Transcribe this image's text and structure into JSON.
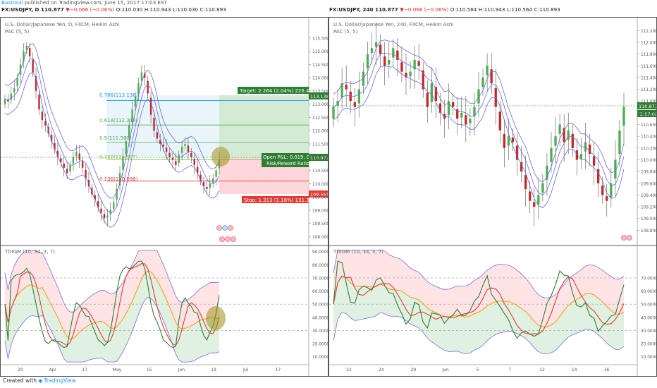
{
  "header": {
    "author": "Bastosai",
    "published": "published on TradingView.com, June 15, 2017 17:03 EST"
  },
  "footer": {
    "created_with": "Created with",
    "brand": "TradingView"
  },
  "colors": {
    "up": "#4caf50",
    "down": "#c62828",
    "pac": "#6a6ad8",
    "tdi_green": "#2e7d32",
    "tdi_red": "#e53935",
    "tdi_orange": "#ff9800",
    "tdi_band": "#7b68ee"
  },
  "charts": [
    {
      "id": "daily",
      "quote": {
        "symbol": "FX:USDJPY, D",
        "price": "110.877",
        "change": "−0.066 (−0.06%)",
        "o": "O:110.030",
        "h": "H:110.943",
        "l": "L:110.030",
        "c": "C:110.893"
      },
      "title": "U.S. Dollar/Japanese Yen, D, FXCM, Heikin Ashi",
      "pac_label": "PAC (5, 5)",
      "tdi_label": "TDIGM (10, 34, 3, 7)",
      "fib": [
        {
          "label": "0.786(113.136)",
          "value": 113.136
        },
        {
          "label": "0.618(112.214)",
          "value": 112.214
        },
        {
          "label": "0.5(111.560)",
          "value": 111.56
        },
        {
          "label": "0.382(110.907)",
          "value": 110.907
        },
        {
          "label": "0.236(110.098)",
          "value": 110.098
        }
      ],
      "position": {
        "target": "Target: 2.264 (2.04%) 226.4,",
        "open": "Open P&L: 0.019, Qt",
        "rr": "Risk/Reward Ratio:",
        "stop": "Stop: 1.313 (1.18%) 131.3,"
      },
      "price_tags": {
        "target": "113.138",
        "last": "110.877",
        "stop": "109.561"
      },
      "x_labels": [
        "20",
        "Apr",
        "17",
        "May",
        "15",
        "Jun",
        "19",
        "Jul",
        "17"
      ],
      "y_labels": [
        "115.500",
        "115.000",
        "114.500",
        "114.000",
        "113.500",
        "113.000",
        "112.500",
        "112.000",
        "111.500",
        "111.000",
        "110.500",
        "110.000",
        "109.500",
        "109.000",
        "108.500",
        "108.000"
      ],
      "tdi_y_labels": [
        "90.0000",
        "80.0000",
        "70.0000",
        "60.0000",
        "50.0000",
        "40.0000",
        "30.0000",
        "20.0000",
        "10.0000"
      ]
    },
    {
      "id": "h4",
      "quote": {
        "symbol": "FX:USDJPY, 240",
        "price": "110.877",
        "change": "−0.066 (−0.06%)",
        "o": "O:110.564",
        "h": "H:110.943",
        "l": "L:110.564",
        "c": "C:110.893"
      },
      "title": "U.S. Dollar/Japanese Yen, 240, FXCM, Heikin Ashi",
      "pac_label": "PAC (5, 5)",
      "tdi_label": "TDIGM (10, 34, 3, 7)",
      "price_tags": {
        "last": "110.877",
        "countdown": "2:57:00"
      },
      "x_labels": [
        "22",
        "24",
        "29",
        "Jun",
        "5",
        "7",
        "12",
        "14",
        "16"
      ],
      "y_labels": [
        "112.200",
        "112.000",
        "111.800",
        "111.600",
        "111.400",
        "111.200",
        "111.000",
        "110.800",
        "110.600",
        "110.400",
        "110.200",
        "110.000",
        "109.800",
        "109.600",
        "109.400",
        "109.200",
        "109.000",
        "108.800"
      ],
      "tdi_y_labels": [
        "70.0000",
        "60.0000",
        "50.0000",
        "40.0000",
        "30.0000",
        "20.0000",
        "10.0000"
      ]
    }
  ],
  "chart_data": [
    {
      "type": "candlestick",
      "title": "U.S. Dollar/Japanese Yen, D, FXCM, Heikin Ashi",
      "ylim": [
        107.8,
        116.0
      ],
      "closes": [
        113.2,
        113.1,
        113.4,
        113.6,
        114.0,
        114.5,
        115.0,
        115.2,
        114.8,
        114.2,
        113.5,
        112.8,
        112.4,
        112.2,
        111.9,
        111.6,
        111.3,
        111.0,
        110.8,
        110.6,
        110.4,
        110.7,
        111.0,
        111.2,
        110.9,
        110.6,
        110.2,
        109.9,
        109.6,
        109.4,
        109.1,
        108.9,
        108.7,
        108.8,
        109.0,
        109.3,
        109.8,
        110.4,
        111.0,
        111.6,
        112.2,
        112.8,
        113.3,
        113.8,
        114.2,
        114.0,
        113.4,
        112.6,
        112.0,
        111.7,
        111.5,
        111.4,
        111.2,
        111.0,
        110.9,
        110.7,
        111.1,
        111.4,
        111.5,
        111.2,
        111.0,
        110.7,
        110.4,
        110.1,
        109.9,
        109.8,
        110.0,
        110.2,
        110.5,
        110.9
      ],
      "x_ticks": [
        "20",
        "Apr",
        "17",
        "May",
        "15",
        "Jun",
        "19",
        "Jul",
        "17"
      ]
    },
    {
      "type": "candlestick",
      "title": "U.S. Dollar/Japanese Yen, 240, FXCM, Heikin Ashi",
      "ylim": [
        108.6,
        112.3
      ],
      "closes": [
        110.9,
        111.0,
        111.3,
        111.2,
        111.0,
        110.9,
        111.2,
        111.5,
        111.8,
        111.9,
        112.0,
        111.8,
        111.6,
        111.7,
        111.9,
        111.7,
        111.5,
        111.4,
        111.5,
        111.7,
        111.6,
        111.2,
        110.9,
        111.3,
        111.0,
        110.8,
        110.7,
        111.0,
        110.9,
        110.7,
        110.8,
        110.6,
        110.7,
        110.9,
        111.2,
        111.4,
        111.6,
        111.3,
        110.9,
        110.5,
        110.2,
        110.4,
        110.3,
        110.0,
        109.8,
        109.5,
        109.3,
        109.2,
        109.4,
        109.6,
        109.9,
        110.2,
        110.4,
        110.6,
        110.3,
        110.5,
        110.2,
        110.0,
        110.1,
        110.3,
        110.1,
        109.9,
        109.6,
        109.4,
        109.3,
        109.6,
        110.0,
        110.5,
        110.9
      ],
      "x_ticks": [
        "22",
        "24",
        "29",
        "Jun",
        "5",
        "7",
        "12",
        "14",
        "16"
      ]
    }
  ]
}
